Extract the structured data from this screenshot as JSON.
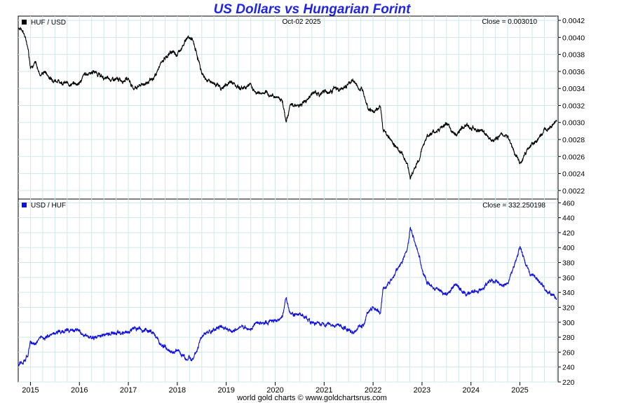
{
  "page": {
    "title": "US Dollars vs Hungarian Forint",
    "date_label": "Oct-02  2025",
    "footer": "world gold charts © www.goldchartsrus.com"
  },
  "colors": {
    "title": "#1f24e6",
    "top_series": "#000000",
    "bottom_series": "#1010e0",
    "grid": "#cfe8e8",
    "frame": "#000000"
  },
  "chart_data": [
    {
      "type": "line",
      "legend": "HUF / USD",
      "close_label": "Close = 0.003010",
      "ylim": [
        0.0021,
        0.00425
      ],
      "yticks": [
        0.0022,
        0.0024,
        0.0026,
        0.0028,
        0.003,
        0.0032,
        0.0034,
        0.0036,
        0.0038,
        0.004,
        0.0042
      ],
      "ytick_labels": [
        "0.0022",
        "0.0024",
        "0.0026",
        "0.0028",
        "0.0030",
        "0.0032",
        "0.0034",
        "0.0036",
        "0.0038",
        "0.0040",
        "0.0042"
      ],
      "x": [
        2014.75,
        2014.85,
        2014.95,
        2015.0,
        2015.1,
        2015.2,
        2015.3,
        2015.4,
        2015.5,
        2015.6,
        2015.8,
        2016.0,
        2016.1,
        2016.3,
        2016.5,
        2016.7,
        2016.9,
        2017.0,
        2017.1,
        2017.3,
        2017.5,
        2017.7,
        2017.9,
        2018.0,
        2018.1,
        2018.2,
        2018.3,
        2018.4,
        2018.5,
        2018.6,
        2018.8,
        2018.9,
        2019.0,
        2019.1,
        2019.3,
        2019.5,
        2019.6,
        2019.8,
        2019.9,
        2020.05,
        2020.15,
        2020.22,
        2020.3,
        2020.4,
        2020.5,
        2020.6,
        2020.8,
        2020.9,
        2021.0,
        2021.1,
        2021.2,
        2021.3,
        2021.4,
        2021.5,
        2021.6,
        2021.7,
        2021.8,
        2021.9,
        2022.0,
        2022.1,
        2022.15,
        2022.2,
        2022.3,
        2022.4,
        2022.5,
        2022.6,
        2022.7,
        2022.76,
        2022.85,
        2022.95,
        2023.0,
        2023.1,
        2023.3,
        2023.5,
        2023.6,
        2023.7,
        2023.9,
        2024.0,
        2024.2,
        2024.4,
        2024.5,
        2024.6,
        2024.75,
        2024.85,
        2024.95,
        2025.0,
        2025.1,
        2025.2,
        2025.3,
        2025.4,
        2025.5,
        2025.6,
        2025.7,
        2025.75
      ],
      "values": [
        0.00412,
        0.00408,
        0.00388,
        0.00366,
        0.0037,
        0.00356,
        0.0036,
        0.00352,
        0.0035,
        0.00348,
        0.00345,
        0.00346,
        0.00356,
        0.0036,
        0.00352,
        0.0035,
        0.0035,
        0.00352,
        0.0034,
        0.00345,
        0.0035,
        0.00373,
        0.00384,
        0.0038,
        0.0039,
        0.004,
        0.00398,
        0.0038,
        0.00358,
        0.0035,
        0.00345,
        0.0034,
        0.00344,
        0.00348,
        0.0034,
        0.00345,
        0.00335,
        0.00334,
        0.00332,
        0.0033,
        0.00326,
        0.003,
        0.00318,
        0.00322,
        0.00318,
        0.00326,
        0.00336,
        0.00332,
        0.00338,
        0.00335,
        0.0034,
        0.00338,
        0.0034,
        0.00345,
        0.0035,
        0.0034,
        0.00338,
        0.00318,
        0.00312,
        0.00316,
        0.0032,
        0.00292,
        0.00285,
        0.00276,
        0.0027,
        0.00262,
        0.00252,
        0.00235,
        0.00246,
        0.00258,
        0.0027,
        0.00284,
        0.0029,
        0.00298,
        0.0029,
        0.00286,
        0.00298,
        0.00294,
        0.0029,
        0.00282,
        0.0028,
        0.00286,
        0.00284,
        0.0027,
        0.00258,
        0.0025,
        0.00262,
        0.00273,
        0.00276,
        0.00282,
        0.0029,
        0.00296,
        0.00298,
        0.00301
      ]
    },
    {
      "type": "line",
      "legend": "USD / HUF",
      "close_label": "Close = 332.250198",
      "ylim": [
        220,
        465
      ],
      "yticks": [
        220,
        240,
        260,
        280,
        300,
        320,
        340,
        360,
        380,
        400,
        420,
        440,
        460
      ],
      "ytick_labels": [
        "220",
        "240",
        "260",
        "280",
        "300",
        "320",
        "340",
        "360",
        "380",
        "400",
        "420",
        "440",
        "460"
      ],
      "x": [
        2014.75,
        2014.85,
        2014.95,
        2015.0,
        2015.1,
        2015.2,
        2015.3,
        2015.4,
        2015.5,
        2015.6,
        2015.8,
        2016.0,
        2016.1,
        2016.3,
        2016.5,
        2016.7,
        2016.9,
        2017.0,
        2017.1,
        2017.3,
        2017.5,
        2017.7,
        2017.9,
        2018.0,
        2018.1,
        2018.2,
        2018.3,
        2018.4,
        2018.5,
        2018.6,
        2018.8,
        2018.9,
        2019.0,
        2019.1,
        2019.3,
        2019.5,
        2019.6,
        2019.8,
        2019.9,
        2020.05,
        2020.15,
        2020.22,
        2020.3,
        2020.4,
        2020.5,
        2020.6,
        2020.8,
        2020.9,
        2021.0,
        2021.1,
        2021.2,
        2021.3,
        2021.4,
        2021.5,
        2021.6,
        2021.7,
        2021.8,
        2021.9,
        2022.0,
        2022.1,
        2022.15,
        2022.2,
        2022.3,
        2022.4,
        2022.5,
        2022.6,
        2022.7,
        2022.76,
        2022.85,
        2022.95,
        2023.0,
        2023.1,
        2023.3,
        2023.5,
        2023.6,
        2023.7,
        2023.9,
        2024.0,
        2024.2,
        2024.4,
        2024.5,
        2024.6,
        2024.75,
        2024.85,
        2024.95,
        2025.0,
        2025.1,
        2025.2,
        2025.3,
        2025.4,
        2025.5,
        2025.6,
        2025.7,
        2025.75
      ],
      "values": [
        243,
        245,
        258,
        273,
        270,
        281,
        278,
        284,
        286,
        287,
        290,
        289,
        281,
        278,
        284,
        286,
        286,
        284,
        294,
        290,
        286,
        268,
        260,
        263,
        256,
        250,
        251,
        263,
        279,
        286,
        290,
        294,
        291,
        287,
        294,
        290,
        299,
        299,
        301,
        303,
        307,
        333,
        314,
        310,
        314,
        307,
        298,
        301,
        296,
        299,
        294,
        296,
        294,
        290,
        286,
        294,
        296,
        314,
        321,
        316,
        312,
        342,
        351,
        362,
        370,
        382,
        397,
        426,
        407,
        388,
        370,
        352,
        345,
        336,
        345,
        350,
        336,
        340,
        345,
        355,
        357,
        350,
        352,
        370,
        388,
        400,
        382,
        366,
        362,
        355,
        345,
        338,
        336,
        332
      ]
    }
  ],
  "xaxis": {
    "labels": [
      "2015",
      "2016",
      "2017",
      "2018",
      "2019",
      "2020",
      "2021",
      "2022",
      "2023",
      "2024",
      "2025"
    ],
    "ticks": [
      2015,
      2016,
      2017,
      2018,
      2019,
      2020,
      2021,
      2022,
      2023,
      2024,
      2025
    ],
    "range": [
      2014.75,
      2025.78
    ]
  }
}
